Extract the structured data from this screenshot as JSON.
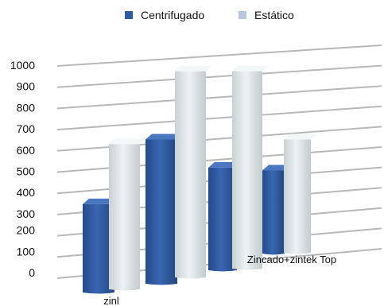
{
  "chart_data": {
    "type": "bar",
    "style": "3d-perspective",
    "categories": [
      "zinl",
      "",
      "Zincado+zintek Top",
      ""
    ],
    "series": [
      {
        "name": "Centrifugado",
        "values": [
          420,
          700,
          520,
          440
        ]
      },
      {
        "name": "Estático",
        "values": [
          690,
          1000,
          1000,
          600
        ]
      }
    ],
    "y_ticks": [
      "1000",
      "900",
      "800",
      "700",
      "600",
      "500",
      "400",
      "300",
      "200",
      "100",
      "0"
    ],
    "ylim": [
      0,
      1000
    ],
    "grid": true,
    "legend_position": "top"
  },
  "colors": {
    "Centrifugado": "#2f5aa3",
    "Estático": "#dfe6e8",
    "grid": "#b8b8b8"
  }
}
